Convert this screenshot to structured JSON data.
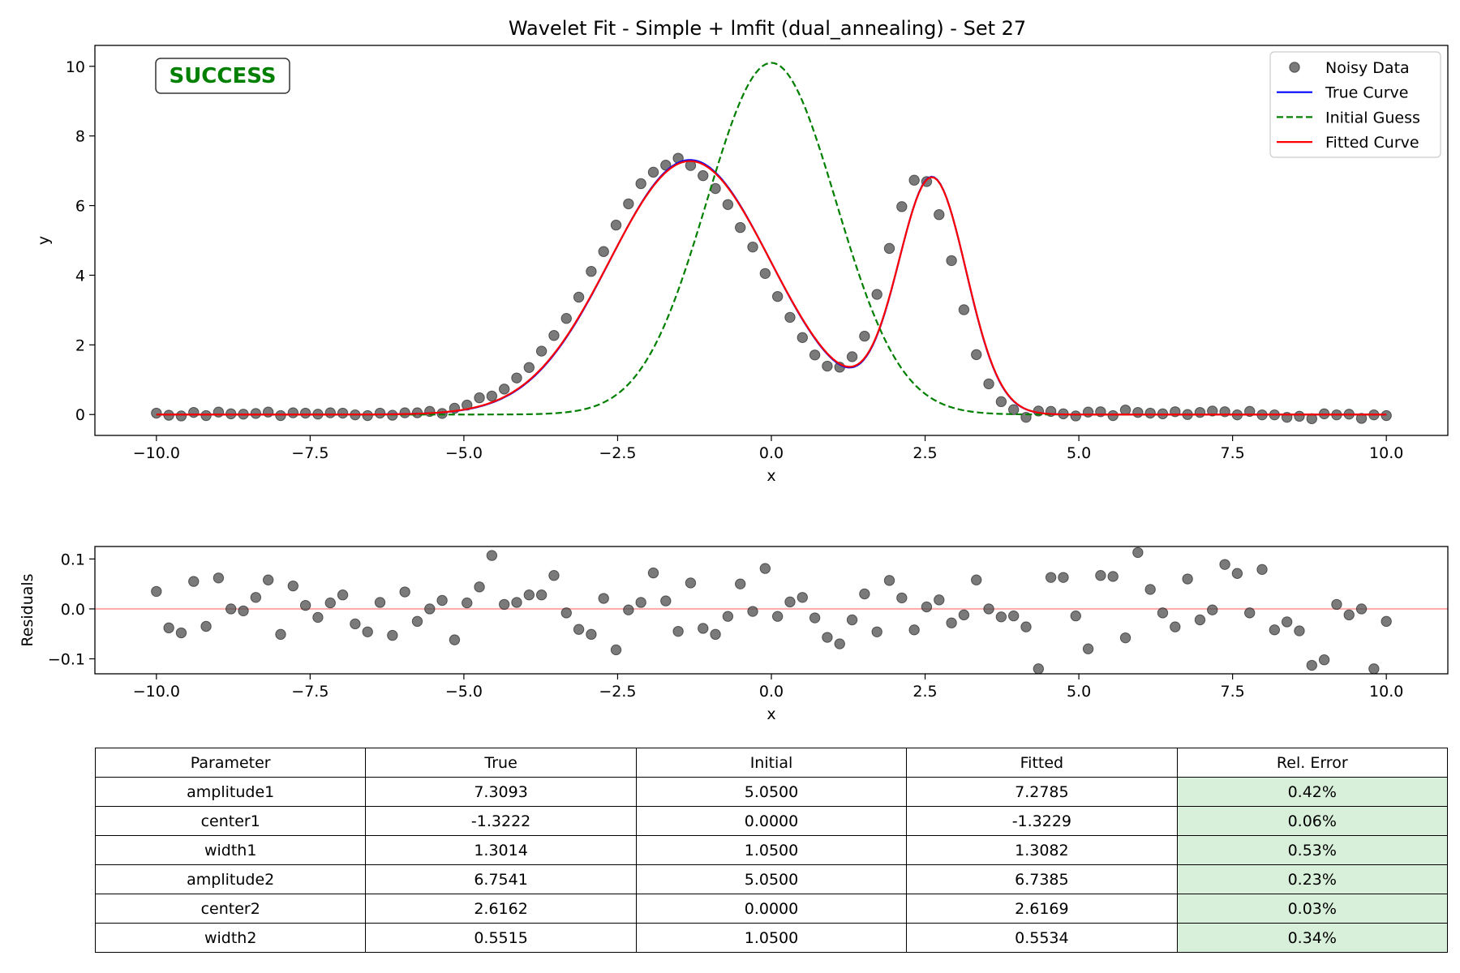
{
  "chart_data": [
    {
      "type": "line",
      "title": "Wavelet Fit - Simple + lmfit (dual_annealing) - Set 27",
      "xlabel": "x",
      "ylabel": "y",
      "xlim": [
        -11.0,
        11.0
      ],
      "ylim": [
        -0.6,
        10.6
      ],
      "xticks": [
        -10.0,
        -7.5,
        -5.0,
        -2.5,
        0.0,
        2.5,
        5.0,
        7.5,
        10.0
      ],
      "xtick_labels": [
        "−10.0",
        "−7.5",
        "−5.0",
        "−2.5",
        "0.0",
        "2.5",
        "5.0",
        "7.5",
        "10.0"
      ],
      "yticks": [
        0,
        2,
        4,
        6,
        8,
        10
      ],
      "ytick_labels": [
        "0",
        "2",
        "4",
        "6",
        "8",
        "10"
      ],
      "grid": false,
      "status_badge": "SUCCESS",
      "legend": {
        "position": "top-right",
        "entries": [
          {
            "label": "Noisy Data",
            "style": "marker",
            "color": "#4d4d4d"
          },
          {
            "label": "True Curve",
            "style": "solid",
            "color": "#0000ff"
          },
          {
            "label": "Initial Guess",
            "style": "dashed",
            "color": "#007f00"
          },
          {
            "label": "Fitted Curve",
            "style": "solid",
            "color": "#ff0000"
          }
        ]
      },
      "series": [
        {
          "name": "True Curve",
          "kind": "model",
          "color": "#0000ff",
          "params": {
            "amplitude1": 7.3093,
            "center1": -1.3222,
            "width1": 1.3014,
            "amplitude2": 6.7541,
            "center2": 2.6162,
            "width2": 0.5515
          }
        },
        {
          "name": "Initial Guess",
          "kind": "model",
          "color": "#007f00",
          "params": {
            "amplitude1": 5.05,
            "center1": 0.0,
            "width1": 1.05,
            "amplitude2": 5.05,
            "center2": 0.0,
            "width2": 1.05
          }
        },
        {
          "name": "Fitted Curve",
          "kind": "model",
          "color": "#ff0000",
          "params": {
            "amplitude1": 7.2785,
            "center1": -1.3229,
            "width1": 1.3082,
            "amplitude2": 6.7385,
            "center2": 2.6169,
            "width2": 0.5534
          }
        },
        {
          "name": "Noisy Data",
          "kind": "points",
          "color": "#4d4d4d",
          "x_start": -10.0,
          "x_end": 10.0,
          "count": 100,
          "y": [
            0.04,
            -0.02,
            -0.04,
            0.06,
            -0.03,
            0.07,
            0.02,
            0.01,
            0.03,
            0.07,
            -0.03,
            0.05,
            0.04,
            0.01,
            0.05,
            0.04,
            -0.01,
            -0.03,
            0.04,
            -0.02,
            0.05,
            0.05,
            0.09,
            0.03,
            0.18,
            0.27,
            0.48,
            0.53,
            0.73,
            1.05,
            1.35,
            1.82,
            2.27,
            2.76,
            3.37,
            4.11,
            4.68,
            5.44,
            6.05,
            6.63,
            6.96,
            7.16,
            7.36,
            7.15,
            6.86,
            6.49,
            6.03,
            5.37,
            4.81,
            4.05,
            3.39,
            2.79,
            2.21,
            1.71,
            1.39,
            1.36,
            1.66,
            2.25,
            3.45,
            4.77,
            5.97,
            6.73,
            6.69,
            5.74,
            4.42,
            3.01,
            1.72,
            0.88,
            0.37,
            0.14,
            -0.08,
            0.1,
            0.09,
            0.02,
            -0.04,
            0.07,
            0.08,
            -0.03,
            0.13,
            0.06,
            0.04,
            0.02,
            0.08,
            0.0,
            0.06,
            0.1,
            0.08,
            -0.01,
            0.09,
            -0.01,
            -0.01,
            -0.08,
            -0.05,
            -0.12,
            0.02,
            -0.01,
            0.01,
            -0.11,
            -0.01,
            -0.03
          ]
        }
      ]
    },
    {
      "type": "scatter",
      "title": "",
      "xlabel": "x",
      "ylabel": "Residuals",
      "xlim": [
        -11.0,
        11.0
      ],
      "ylim": [
        -0.13,
        0.125
      ],
      "xticks": [
        -10.0,
        -7.5,
        -5.0,
        -2.5,
        0.0,
        2.5,
        5.0,
        7.5,
        10.0
      ],
      "xtick_labels": [
        "−10.0",
        "−7.5",
        "−5.0",
        "−2.5",
        "0.0",
        "2.5",
        "5.0",
        "7.5",
        "10.0"
      ],
      "yticks": [
        -0.1,
        0.0,
        0.1
      ],
      "ytick_labels": [
        "−0.1",
        "0.0",
        "0.1"
      ],
      "grid": false,
      "reference_line": {
        "y": 0.0,
        "color": "#ff9999"
      },
      "series": [
        {
          "name": "",
          "color": "#4d4d4d",
          "x_start": -10.0,
          "x_end": 10.0,
          "count": 100,
          "y": [
            0.035,
            -0.038,
            -0.048,
            0.055,
            -0.035,
            0.062,
            0.0,
            -0.004,
            0.023,
            0.058,
            -0.051,
            0.046,
            0.007,
            -0.017,
            0.012,
            0.028,
            -0.03,
            -0.046,
            0.013,
            -0.053,
            0.034,
            -0.025,
            0.0,
            0.017,
            -0.062,
            0.012,
            0.044,
            0.107,
            0.009,
            0.013,
            0.028,
            0.028,
            0.067,
            -0.008,
            -0.041,
            -0.051,
            0.021,
            -0.082,
            -0.002,
            0.013,
            0.072,
            0.016,
            -0.045,
            0.052,
            -0.039,
            -0.051,
            -0.015,
            0.05,
            -0.005,
            0.081,
            -0.015,
            0.014,
            0.023,
            -0.018,
            -0.057,
            -0.07,
            -0.022,
            0.03,
            -0.046,
            0.057,
            0.022,
            -0.042,
            0.004,
            0.018,
            -0.028,
            -0.012,
            0.058,
            0.0,
            -0.016,
            -0.014,
            -0.036,
            -0.12,
            0.063,
            0.063,
            -0.014,
            -0.08,
            0.067,
            0.065,
            -0.058,
            0.113,
            0.039,
            -0.008,
            -0.036,
            0.06,
            -0.022,
            -0.002,
            0.089,
            0.071,
            -0.008,
            0.079,
            -0.042,
            -0.026,
            -0.044,
            -0.113,
            -0.102,
            0.009,
            -0.012,
            0.0,
            -0.12,
            -0.025
          ]
        }
      ]
    },
    {
      "type": "table",
      "columns": [
        "Parameter",
        "True",
        "Initial",
        "Fitted",
        "Rel. Error"
      ],
      "rows": [
        [
          "amplitude1",
          "7.3093",
          "5.0500",
          "7.2785",
          "0.42%"
        ],
        [
          "center1",
          "-1.3222",
          "0.0000",
          "-1.3229",
          "0.06%"
        ],
        [
          "width1",
          "1.3014",
          "1.0500",
          "1.3082",
          "0.53%"
        ],
        [
          "amplitude2",
          "6.7541",
          "5.0500",
          "6.7385",
          "0.23%"
        ],
        [
          "center2",
          "2.6162",
          "0.0000",
          "2.6169",
          "0.03%"
        ],
        [
          "width2",
          "0.5515",
          "1.0500",
          "0.5534",
          "0.34%"
        ]
      ],
      "highlight_color": "#d8f0da"
    }
  ]
}
